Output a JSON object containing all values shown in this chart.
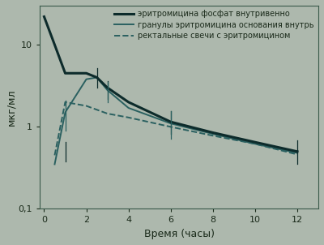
{
  "background_color": "#adb8ad",
  "plot_bg_color": "#adb8ad",
  "line1": {
    "label": "эритромицина фосфат внутривенно",
    "x": [
      0,
      0.5,
      1,
      2,
      2.5,
      3,
      4,
      6,
      8,
      10,
      12
    ],
    "y": [
      22,
      10,
      4.5,
      4.5,
      4.0,
      3.0,
      2.0,
      1.15,
      0.85,
      0.65,
      0.5
    ],
    "color": "#0d2b2b",
    "linewidth": 2.2,
    "linestyle": "-"
  },
  "line2": {
    "label": "гранулы эритромицина основания внутрь",
    "x": [
      0.5,
      1,
      2,
      2.5,
      3,
      4,
      6,
      8,
      10,
      12
    ],
    "y": [
      0.35,
      1.5,
      3.8,
      4.0,
      2.8,
      1.7,
      1.1,
      0.82,
      0.62,
      0.48
    ],
    "color": "#2a6060",
    "linewidth": 1.4,
    "linestyle": "-"
  },
  "line3": {
    "label": "ректальные свечи с эритромицином",
    "x": [
      0.5,
      1,
      2,
      3,
      4,
      6,
      8,
      10,
      12
    ],
    "y": [
      0.45,
      2.0,
      1.8,
      1.45,
      1.3,
      1.0,
      0.78,
      0.62,
      0.46
    ],
    "color": "#2a6060",
    "linewidth": 1.4,
    "linestyle": "--"
  },
  "errorbars": [
    {
      "x": 1,
      "ylow": 0.38,
      "yhigh": 0.65,
      "line": 1
    },
    {
      "x": 2.5,
      "ylow": 3.0,
      "yhigh": 5.2,
      "line": 1
    },
    {
      "x": 3,
      "ylow": 2.2,
      "yhigh": 3.6,
      "line": 1
    },
    {
      "x": 6,
      "ylow": 0.82,
      "yhigh": 1.55,
      "line": 1
    },
    {
      "x": 12,
      "ylow": 0.35,
      "yhigh": 0.68,
      "line": 1
    },
    {
      "x": 1,
      "ylow": 0.9,
      "yhigh": 2.1,
      "line": 2
    },
    {
      "x": 3,
      "ylow": 2.0,
      "yhigh": 3.5,
      "line": 2
    },
    {
      "x": 6,
      "ylow": 0.72,
      "yhigh": 1.55,
      "line": 2
    }
  ],
  "xlabel": "Время (часы)",
  "ylabel": "мкг/мл",
  "xlim": [
    -0.2,
    13
  ],
  "ylim_log": [
    0.1,
    30
  ],
  "xticks": [
    0,
    2,
    4,
    6,
    8,
    10,
    12
  ],
  "yticks": [
    0.1,
    1,
    10
  ],
  "ytick_labels": [
    "0,1",
    "1",
    "10"
  ],
  "legend_fontsize": 7.0,
  "axis_label_fontsize": 9,
  "tick_fontsize": 8,
  "err_color1": "#0d2b2b",
  "err_color2": "#2a6060"
}
